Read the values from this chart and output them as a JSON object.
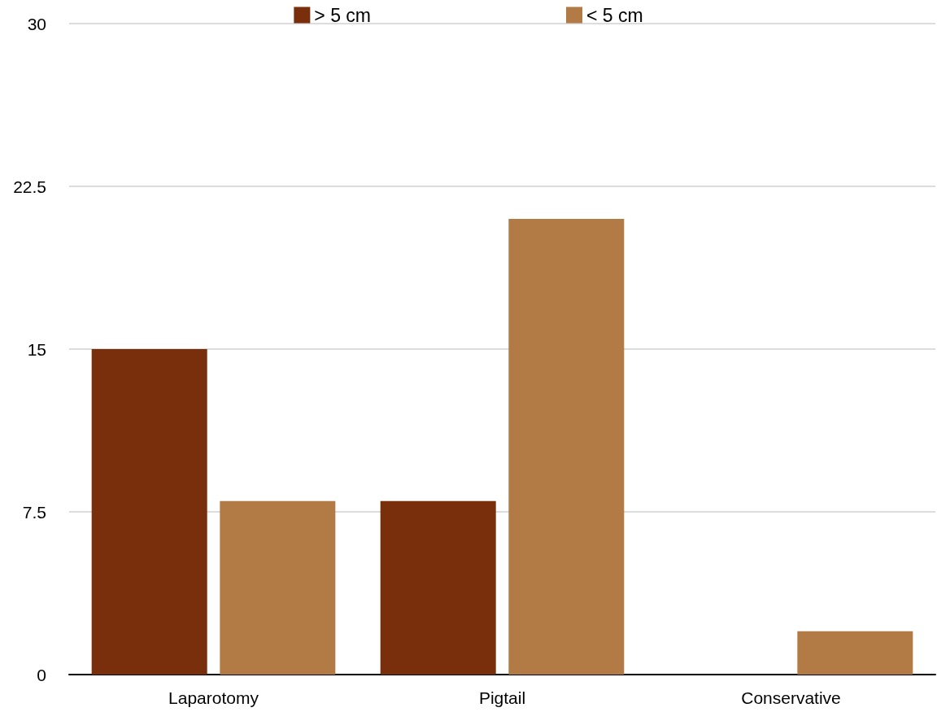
{
  "chart_data": {
    "type": "bar",
    "categories": [
      "Laparotomy",
      "Pigtail",
      "Conservative"
    ],
    "series": [
      {
        "name": "> 5 cm",
        "color": "#7a2f0c",
        "values": [
          15,
          8,
          0
        ]
      },
      {
        "name": "< 5 cm",
        "color": "#b27b46",
        "values": [
          8,
          21,
          2
        ]
      }
    ],
    "ylim": [
      0,
      30
    ],
    "yticks": [
      0,
      7.5,
      15,
      22.5,
      30
    ],
    "grid": "y",
    "legend": "top"
  }
}
